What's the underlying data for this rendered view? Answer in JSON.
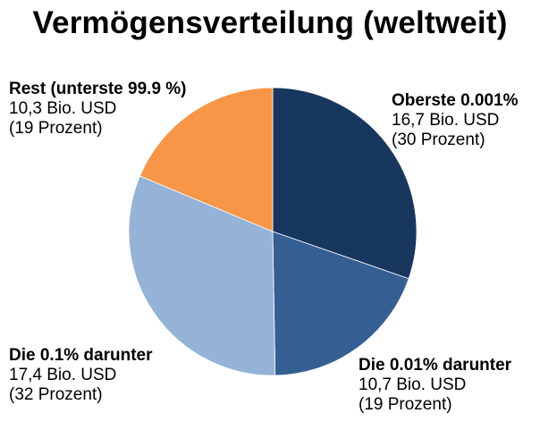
{
  "chart_data": {
    "type": "pie",
    "title": "Vermögensverteilung (weltweit)",
    "start_angle_deg": 0,
    "direction": "clockwise",
    "slices": [
      {
        "name": "Oberste 0.001%",
        "value": 16.7,
        "value_text": "16,7 Bio. USD",
        "percent": 30,
        "percent_text": "(30 Prozent)",
        "color": "#17375e"
      },
      {
        "name": "Die 0.01% darunter",
        "value": 10.7,
        "value_text": "10,7 Bio. USD",
        "percent": 19,
        "percent_text": "(19 Prozent)",
        "color": "#355f93"
      },
      {
        "name": "Die 0.1% darunter",
        "value": 17.4,
        "value_text": "17,4 Bio. USD",
        "percent": 32,
        "percent_text": "(32 Prozent)",
        "color": "#95b3d7"
      },
      {
        "name": "Rest (unterste 99.9 %)",
        "value": 10.3,
        "value_text": "10,3 Bio. USD",
        "percent": 19,
        "percent_text": "(19 Prozent)",
        "color": "#f79646"
      }
    ]
  }
}
